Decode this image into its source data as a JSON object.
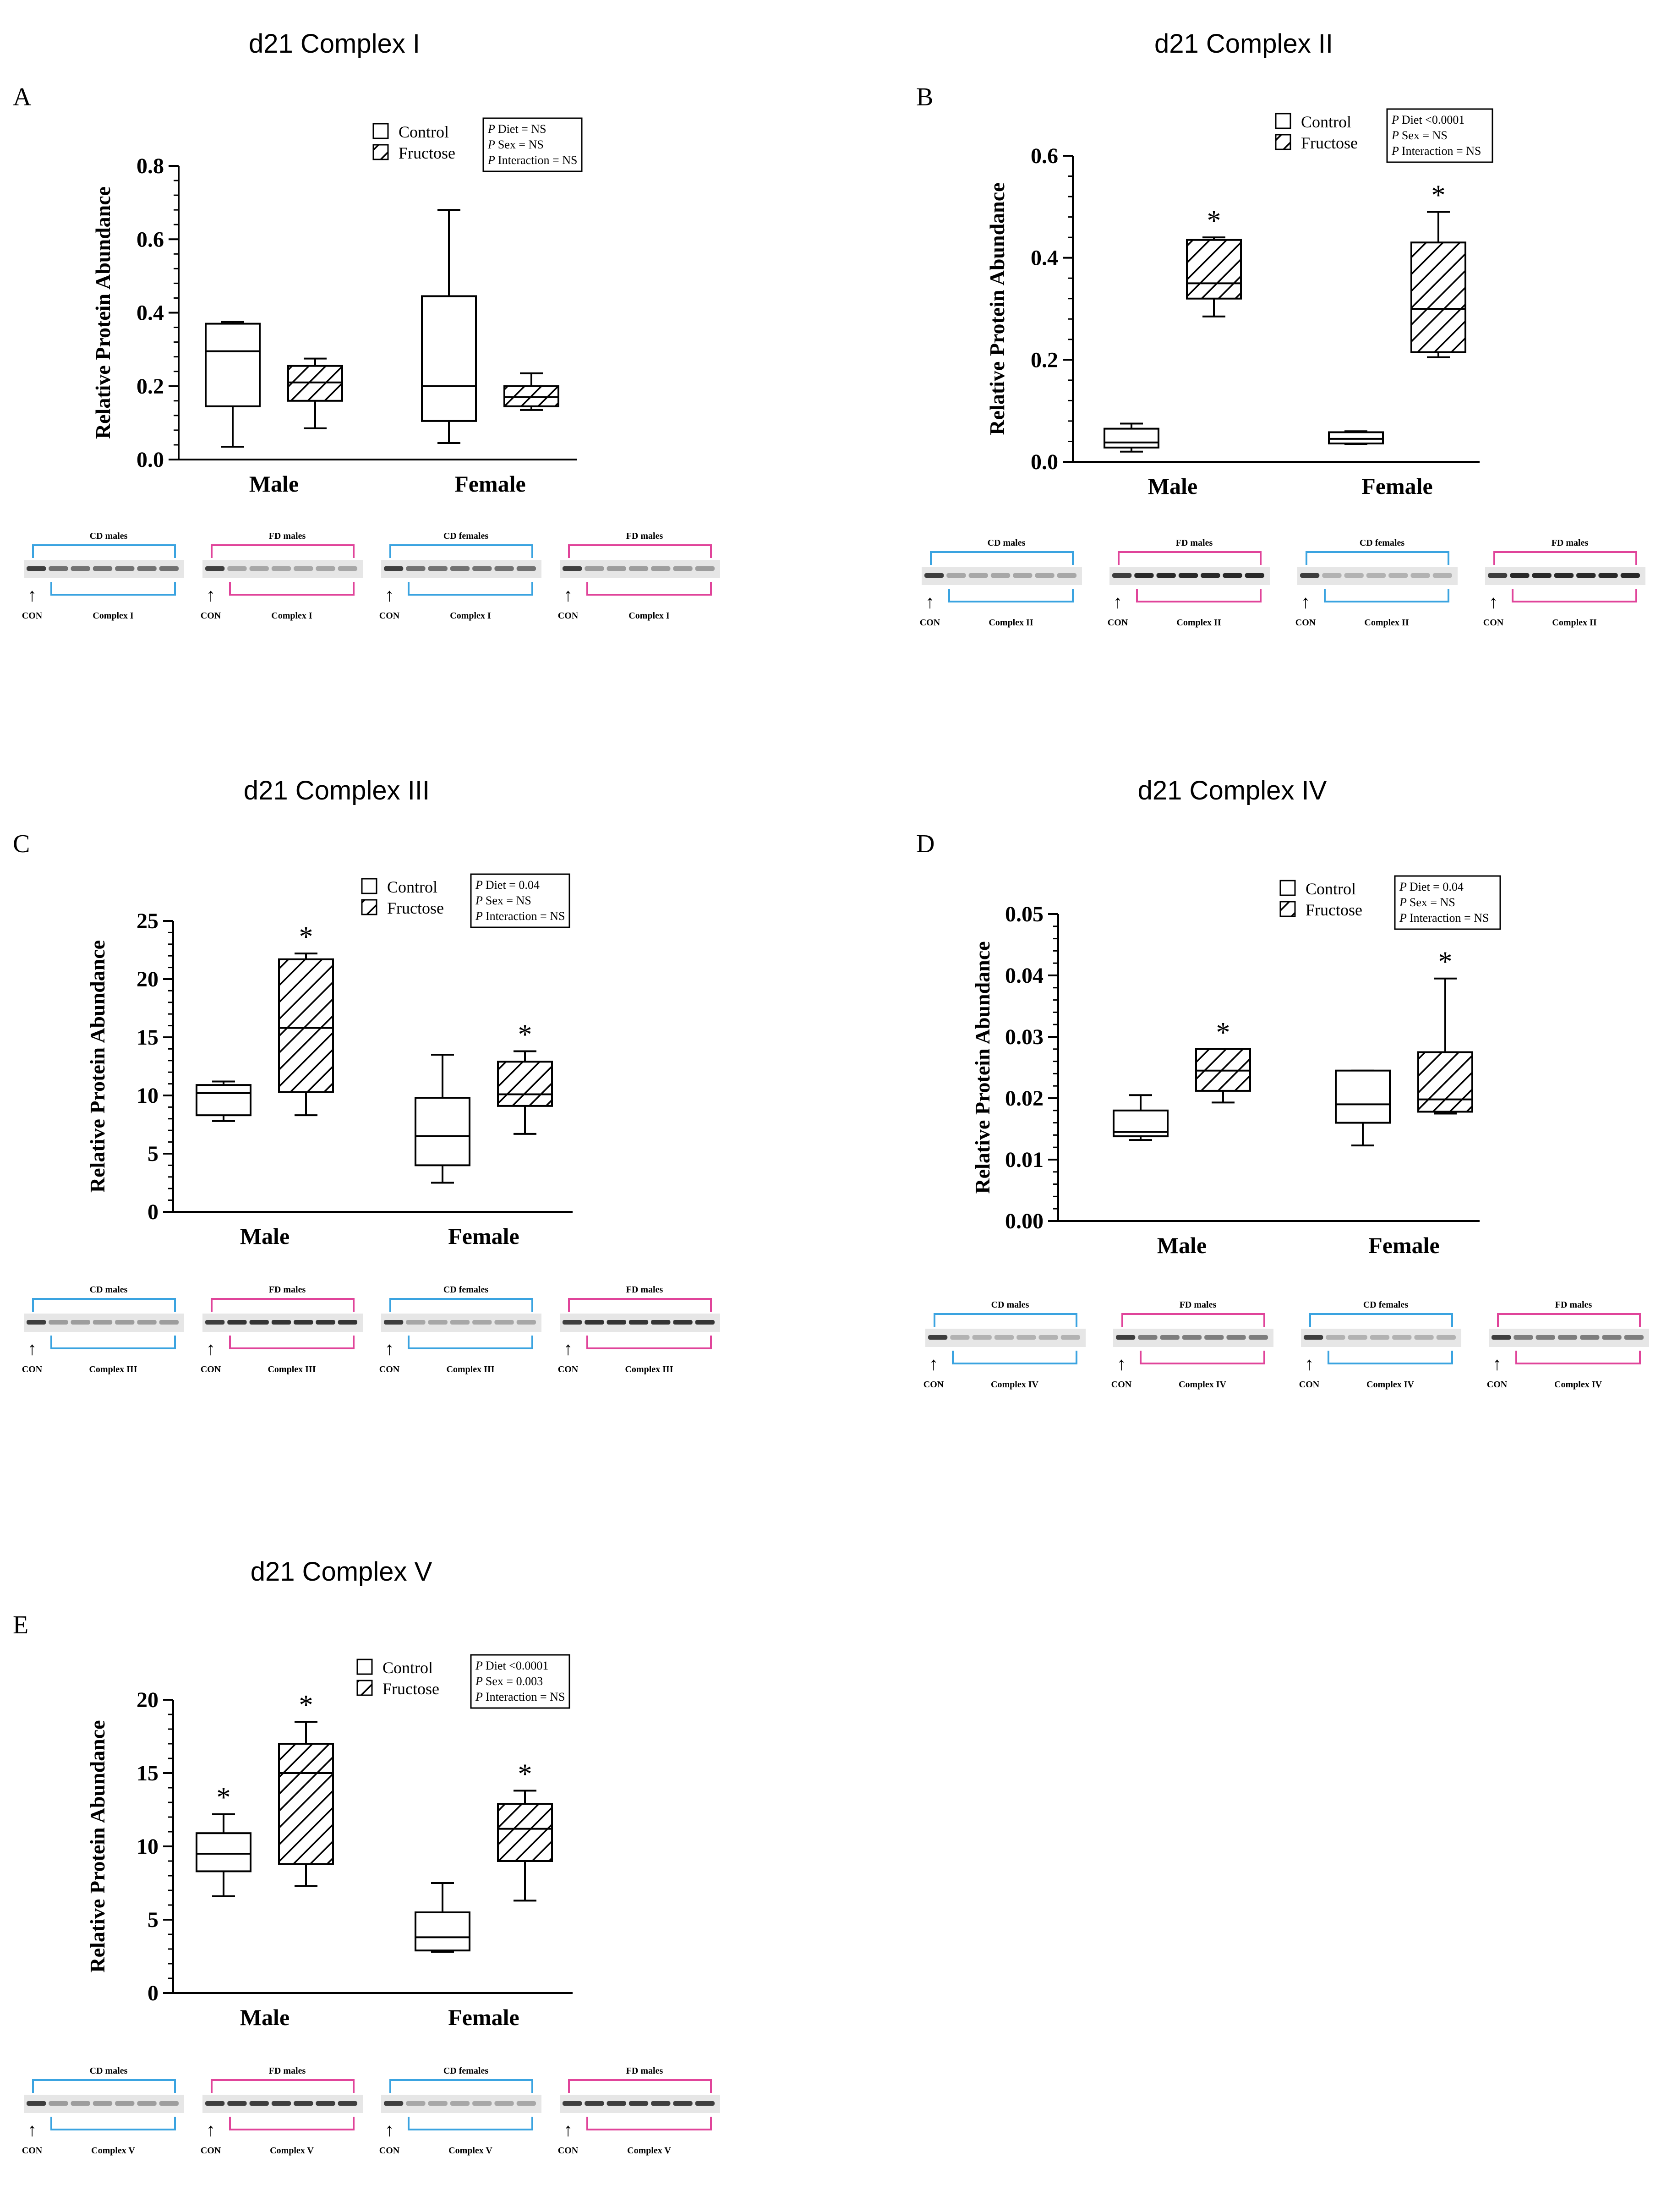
{
  "figure": {
    "legend": {
      "control": "Control",
      "fructose": "Fructose"
    },
    "sex_labels": [
      "Male",
      "Female"
    ],
    "ylabel": "Relative Protein Abundance",
    "blot_con_label": "CON"
  },
  "chart_data": [
    {
      "type": "box",
      "panel": "A",
      "title": "d21 Complex I",
      "ylabel": "Relative Protein Abundance",
      "ylim": [
        0,
        0.8
      ],
      "yticks": [
        "0.0",
        "0.2",
        "0.4",
        "0.6",
        "0.8"
      ],
      "tickvals": [
        0,
        0.2,
        0.4,
        0.6,
        0.8
      ],
      "categories": [
        "Male",
        "Female"
      ],
      "series": [
        {
          "name": "Control",
          "boxes": [
            {
              "min": 0.035,
              "q1": 0.145,
              "median": 0.295,
              "q3": 0.37,
              "max": 0.375,
              "star": false
            },
            {
              "min": 0.045,
              "q1": 0.105,
              "median": 0.2,
              "q3": 0.445,
              "max": 0.68,
              "star": false
            }
          ]
        },
        {
          "name": "Fructose",
          "boxes": [
            {
              "min": 0.085,
              "q1": 0.16,
              "median": 0.21,
              "q3": 0.255,
              "max": 0.275,
              "star": false
            },
            {
              "min": 0.135,
              "q1": 0.145,
              "median": 0.17,
              "q3": 0.2,
              "max": 0.235,
              "star": false
            }
          ]
        }
      ],
      "stats": [
        "Diet = NS",
        "Sex = NS",
        "Interaction = NS"
      ],
      "blots": [
        {
          "group": "CD males",
          "label": "Complex I",
          "color": "#3aa3e0",
          "intensity": 0.55
        },
        {
          "group": "FD males",
          "label": "Complex I",
          "color": "#e0449a",
          "intensity": 0.3
        },
        {
          "group": "CD females",
          "label": "Complex I",
          "color": "#3aa3e0",
          "intensity": 0.55
        },
        {
          "group": "FD males",
          "label": "Complex I",
          "color": "#e0449a",
          "intensity": 0.35
        }
      ]
    },
    {
      "type": "box",
      "panel": "B",
      "title": "d21 Complex II",
      "ylabel": "Relative Protein Abundance",
      "ylim": [
        0,
        0.6
      ],
      "yticks": [
        "0.0",
        "0.2",
        "0.4",
        "0.6"
      ],
      "tickvals": [
        0,
        0.2,
        0.4,
        0.6
      ],
      "categories": [
        "Male",
        "Female"
      ],
      "series": [
        {
          "name": "Control",
          "boxes": [
            {
              "min": 0.02,
              "q1": 0.028,
              "median": 0.038,
              "q3": 0.065,
              "max": 0.075,
              "star": false
            },
            {
              "min": 0.035,
              "q1": 0.036,
              "median": 0.045,
              "q3": 0.058,
              "max": 0.06,
              "star": false
            }
          ]
        },
        {
          "name": "Fructose",
          "boxes": [
            {
              "min": 0.285,
              "q1": 0.32,
              "median": 0.35,
              "q3": 0.435,
              "max": 0.44,
              "star": true
            },
            {
              "min": 0.205,
              "q1": 0.215,
              "median": 0.3,
              "q3": 0.43,
              "max": 0.49,
              "star": true
            }
          ]
        }
      ],
      "stats": [
        "Diet <0.0001",
        "Sex = NS",
        "Interaction = NS"
      ],
      "blots": [
        {
          "group": "CD males",
          "label": "Complex II",
          "color": "#3aa3e0",
          "intensity": 0.3
        },
        {
          "group": "FD males",
          "label": "Complex II",
          "color": "#e0449a",
          "intensity": 0.9
        },
        {
          "group": "CD females",
          "label": "Complex II",
          "color": "#3aa3e0",
          "intensity": 0.25
        },
        {
          "group": "FD males",
          "label": "Complex II",
          "color": "#e0449a",
          "intensity": 0.9
        }
      ]
    },
    {
      "type": "box",
      "panel": "C",
      "title": "d21 Complex III",
      "ylabel": "Relative Protein Abundance",
      "ylim": [
        0,
        25
      ],
      "yticks": [
        "0",
        "5",
        "10",
        "15",
        "20",
        "25"
      ],
      "tickvals": [
        0,
        5,
        10,
        15,
        20,
        25
      ],
      "categories": [
        "Male",
        "Female"
      ],
      "series": [
        {
          "name": "Control",
          "boxes": [
            {
              "min": 7.8,
              "q1": 8.3,
              "median": 10.2,
              "q3": 10.9,
              "max": 11.2,
              "star": false
            },
            {
              "min": 2.5,
              "q1": 4.0,
              "median": 6.5,
              "q3": 9.8,
              "max": 13.5,
              "star": false
            }
          ]
        },
        {
          "name": "Fructose",
          "boxes": [
            {
              "min": 8.3,
              "q1": 10.3,
              "median": 15.8,
              "q3": 21.7,
              "max": 22.2,
              "star": true
            },
            {
              "min": 6.7,
              "q1": 9.1,
              "median": 10.1,
              "q3": 12.9,
              "max": 13.8,
              "star": true
            }
          ]
        }
      ],
      "stats": [
        "Diet = 0.04",
        "Sex = NS",
        "Interaction = NS"
      ],
      "blots": [
        {
          "group": "CD males",
          "label": "Complex III",
          "color": "#3aa3e0",
          "intensity": 0.35
        },
        {
          "group": "FD males",
          "label": "Complex III",
          "color": "#e0449a",
          "intensity": 0.85
        },
        {
          "group": "CD females",
          "label": "Complex III",
          "color": "#3aa3e0",
          "intensity": 0.3
        },
        {
          "group": "FD males",
          "label": "Complex III",
          "color": "#e0449a",
          "intensity": 0.85
        }
      ]
    },
    {
      "type": "box",
      "panel": "D",
      "title": "d21 Complex IV",
      "ylabel": "Relative Protein Abundance",
      "ylim": [
        0,
        0.05
      ],
      "yticks": [
        "0.00",
        "0.01",
        "0.02",
        "0.03",
        "0.04",
        "0.05"
      ],
      "tickvals": [
        0,
        0.01,
        0.02,
        0.03,
        0.04,
        0.05
      ],
      "categories": [
        "Male",
        "Female"
      ],
      "series": [
        {
          "name": "Control",
          "boxes": [
            {
              "min": 0.0132,
              "q1": 0.0138,
              "median": 0.0145,
              "q3": 0.018,
              "max": 0.0205,
              "star": false
            },
            {
              "min": 0.0123,
              "q1": 0.016,
              "median": 0.019,
              "q3": 0.0245,
              "max": 0.0245,
              "star": false
            }
          ]
        },
        {
          "name": "Fructose",
          "boxes": [
            {
              "min": 0.0193,
              "q1": 0.0212,
              "median": 0.0245,
              "q3": 0.028,
              "max": 0.028,
              "star": true
            },
            {
              "min": 0.0175,
              "q1": 0.0178,
              "median": 0.0198,
              "q3": 0.0275,
              "max": 0.0395,
              "star": true
            }
          ]
        }
      ],
      "stats": [
        "Diet = 0.04",
        "Sex = NS",
        "Interaction = NS"
      ],
      "blots": [
        {
          "group": "CD males",
          "label": "Complex IV",
          "color": "#3aa3e0",
          "intensity": 0.25
        },
        {
          "group": "FD males",
          "label": "Complex IV",
          "color": "#e0449a",
          "intensity": 0.5
        },
        {
          "group": "CD females",
          "label": "Complex IV",
          "color": "#3aa3e0",
          "intensity": 0.25
        },
        {
          "group": "FD males",
          "label": "Complex IV",
          "color": "#e0449a",
          "intensity": 0.5
        }
      ]
    },
    {
      "type": "box",
      "panel": "E",
      "title": "d21 Complex V",
      "ylabel": "Relative Protein Abundance",
      "ylim": [
        0,
        20
      ],
      "yticks": [
        "0",
        "5",
        "10",
        "15",
        "20"
      ],
      "tickvals": [
        0,
        5,
        10,
        15,
        20
      ],
      "categories": [
        "Male",
        "Female"
      ],
      "series": [
        {
          "name": "Control",
          "boxes": [
            {
              "min": 6.6,
              "q1": 8.3,
              "median": 9.5,
              "q3": 10.9,
              "max": 12.2,
              "star": true
            },
            {
              "min": 2.8,
              "q1": 2.9,
              "median": 3.8,
              "q3": 5.5,
              "max": 7.5,
              "star": false
            }
          ]
        },
        {
          "name": "Fructose",
          "boxes": [
            {
              "min": 7.3,
              "q1": 8.8,
              "median": 15.0,
              "q3": 17.0,
              "max": 18.5,
              "star": true
            },
            {
              "min": 6.3,
              "q1": 9.0,
              "median": 11.2,
              "q3": 12.9,
              "max": 13.8,
              "star": true
            }
          ]
        }
      ],
      "stats": [
        "Diet <0.0001",
        "Sex = 0.003",
        "Interaction = NS"
      ],
      "blots": [
        {
          "group": "CD males",
          "label": "Complex V",
          "color": "#3aa3e0",
          "intensity": 0.35
        },
        {
          "group": "FD males",
          "label": "Complex V",
          "color": "#e0449a",
          "intensity": 0.8
        },
        {
          "group": "CD females",
          "label": "Complex V",
          "color": "#3aa3e0",
          "intensity": 0.3
        },
        {
          "group": "FD males",
          "label": "Complex V",
          "color": "#e0449a",
          "intensity": 0.8
        }
      ]
    }
  ]
}
